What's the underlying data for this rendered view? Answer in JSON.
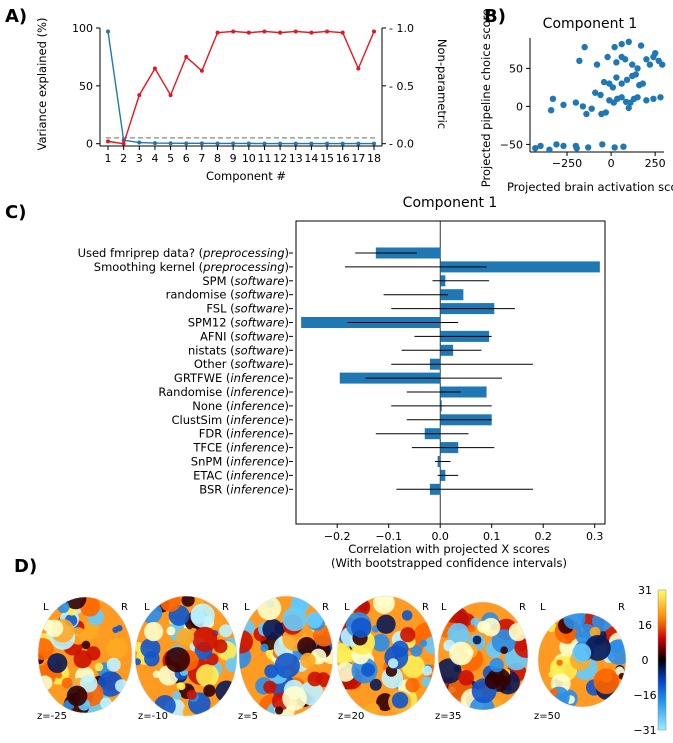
{
  "panels": {
    "a_letter": "A)",
    "b_letter": "B)",
    "c_letter": "C)",
    "d_letter": "D)"
  },
  "chart_data": [
    {
      "panel": "A",
      "type": "line",
      "xlabel": "Component #",
      "ylabel_left": "Variance explained (%)",
      "ylabel_right": "Non-parametric",
      "x": [
        1,
        2,
        3,
        4,
        5,
        6,
        7,
        8,
        9,
        10,
        11,
        12,
        13,
        14,
        15,
        16,
        17,
        18
      ],
      "x_tick_labels": [
        "1",
        "2",
        "3",
        "4",
        "5",
        "6",
        "7",
        "8",
        "9",
        "10",
        "11",
        "12",
        "13",
        "14",
        "15",
        "16",
        "17",
        "18"
      ],
      "ylim_left": [
        -2,
        100
      ],
      "yticks_left": [
        0,
        50,
        100
      ],
      "ylim_right": [
        -0.02,
        1.0
      ],
      "yticks_right": [
        0.0,
        0.5,
        1.0
      ],
      "ytick_labels_right": [
        "0.0",
        "0.5",
        "1.0"
      ],
      "series": [
        {
          "axis": "left",
          "color": "#1f77b4",
          "values": [
            97,
            3,
            1,
            0.5,
            0.4,
            0.3,
            0.3,
            0.2,
            0.2,
            0.2,
            0.1,
            0.1,
            0.1,
            0.1,
            0.1,
            0.1,
            0.1,
            0.1
          ]
        },
        {
          "axis": "right",
          "color": "#e8151e",
          "values": [
            0.02,
            0.0,
            0.42,
            0.65,
            0.42,
            0.75,
            0.63,
            0.96,
            0.97,
            0.96,
            0.97,
            0.96,
            0.97,
            0.96,
            0.97,
            0.96,
            0.65,
            0.97
          ]
        }
      ],
      "reference_line": {
        "axis": "right",
        "value": 0.05,
        "style": "dashed",
        "color": "#888888"
      }
    },
    {
      "panel": "B",
      "type": "scatter",
      "title": "Component 1",
      "xlabel": "Projected brain activation score",
      "ylabel": "Projected pipeline choice score",
      "xlim": [
        -460,
        300
      ],
      "ylim": [
        -60,
        90
      ],
      "xticks": [
        -250,
        0,
        250
      ],
      "yticks": [
        -50,
        0,
        50
      ],
      "color": "#1f77b4",
      "points": [
        [
          -430,
          -55
        ],
        [
          -400,
          -52
        ],
        [
          -350,
          -57
        ],
        [
          -310,
          -50
        ],
        [
          -270,
          -52
        ],
        [
          -200,
          -52
        ],
        [
          -195,
          -55
        ],
        [
          -130,
          -54
        ],
        [
          -50,
          -50
        ],
        [
          20,
          -54
        ],
        [
          70,
          -53
        ],
        [
          -340,
          -5
        ],
        [
          -330,
          10
        ],
        [
          -270,
          2
        ],
        [
          -160,
          0
        ],
        [
          -110,
          -3
        ],
        [
          -55,
          -10
        ],
        [
          -30,
          -8
        ],
        [
          -10,
          8
        ],
        [
          15,
          5
        ],
        [
          35,
          10
        ],
        [
          60,
          12
        ],
        [
          85,
          6
        ],
        [
          100,
          -2
        ],
        [
          110,
          5
        ],
        [
          130,
          10
        ],
        [
          150,
          12
        ],
        [
          200,
          8
        ],
        [
          240,
          10
        ],
        [
          280,
          12
        ],
        [
          -200,
          5
        ],
        [
          -140,
          -10
        ],
        [
          -90,
          18
        ],
        [
          -60,
          15
        ],
        [
          -40,
          32
        ],
        [
          -10,
          30
        ],
        [
          10,
          25
        ],
        [
          30,
          38
        ],
        [
          60,
          30
        ],
        [
          90,
          35
        ],
        [
          120,
          40
        ],
        [
          140,
          42
        ],
        [
          160,
          28
        ],
        [
          180,
          30
        ],
        [
          -180,
          60
        ],
        [
          -150,
          78
        ],
        [
          -80,
          55
        ],
        [
          -20,
          65
        ],
        [
          30,
          58
        ],
        [
          60,
          65
        ],
        [
          80,
          62
        ],
        [
          100,
          85
        ],
        [
          120,
          55
        ],
        [
          150,
          50
        ],
        [
          170,
          80
        ],
        [
          200,
          62
        ],
        [
          220,
          55
        ],
        [
          250,
          70
        ],
        [
          270,
          60
        ],
        [
          290,
          55
        ],
        [
          20,
          78
        ],
        [
          60,
          82
        ],
        [
          240,
          65
        ]
      ]
    },
    {
      "panel": "C",
      "type": "bar",
      "orientation": "horizontal",
      "title": "Component 1",
      "xlabel": "Correlation with projected X scores",
      "xlabel2": "(With bootstrapped confidence intervals)",
      "xlim": [
        -0.28,
        0.32
      ],
      "xticks": [
        -0.2,
        -0.1,
        0.0,
        0.1,
        0.2,
        0.3
      ],
      "xtick_labels": [
        "−0.2",
        "−0.1",
        "0.0",
        "0.1",
        "0.2",
        "0.3"
      ],
      "color": "#1f77b4",
      "categories": [
        {
          "name": "Used fmriprep data?",
          "group": "preprocessing"
        },
        {
          "name": "Smoothing kernel",
          "group": "preprocessing"
        },
        {
          "name": "SPM",
          "group": "software"
        },
        {
          "name": "randomise",
          "group": "software"
        },
        {
          "name": "FSL",
          "group": "software"
        },
        {
          "name": "SPM12",
          "group": "software"
        },
        {
          "name": "AFNI",
          "group": "software"
        },
        {
          "name": "nistats",
          "group": "software"
        },
        {
          "name": "Other",
          "group": "software"
        },
        {
          "name": "GRTFWE",
          "group": "inference"
        },
        {
          "name": "Randomise",
          "group": "inference"
        },
        {
          "name": "None",
          "group": "inference"
        },
        {
          "name": "ClustSim",
          "group": "inference"
        },
        {
          "name": "FDR",
          "group": "inference"
        },
        {
          "name": "TFCE",
          "group": "inference"
        },
        {
          "name": "SnPM",
          "group": "inference"
        },
        {
          "name": "ETAC",
          "group": "inference"
        },
        {
          "name": "BSR",
          "group": "inference"
        }
      ],
      "values": [
        -0.125,
        0.31,
        0.01,
        0.045,
        0.105,
        -0.27,
        0.095,
        0.025,
        -0.02,
        -0.195,
        0.09,
        0.003,
        0.1,
        -0.03,
        0.035,
        -0.005,
        0.01,
        -0.02
      ],
      "ci_low": [
        -0.165,
        -0.185,
        -0.015,
        -0.11,
        -0.095,
        -0.18,
        -0.05,
        -0.075,
        -0.095,
        -0.145,
        -0.065,
        -0.095,
        -0.065,
        -0.125,
        -0.055,
        -0.01,
        -0.005,
        -0.085
      ],
      "ci_high": [
        -0.045,
        0.09,
        0.095,
        0.015,
        0.145,
        0.035,
        0.1,
        0.08,
        0.18,
        0.12,
        0.04,
        0.1,
        0.1,
        0.055,
        0.105,
        0.02,
        0.035,
        0.18
      ]
    },
    {
      "panel": "D",
      "type": "heatmap",
      "colorbar_ticks": [
        31,
        16,
        0,
        -16,
        -31
      ],
      "colorbar_tick_labels": [
        "31",
        "16",
        "0",
        "−16",
        "−31"
      ],
      "slices": [
        {
          "z_label": "z=-25",
          "L": "L",
          "R": "R"
        },
        {
          "z_label": "z=-10",
          "L": "L",
          "R": "R"
        },
        {
          "z_label": "z=5",
          "L": "L",
          "R": "R"
        },
        {
          "z_label": "z=20",
          "L": "L",
          "R": "R"
        },
        {
          "z_label": "z=35",
          "L": "L",
          "R": "R"
        },
        {
          "z_label": "z=50",
          "L": "L",
          "R": "R"
        }
      ]
    }
  ]
}
